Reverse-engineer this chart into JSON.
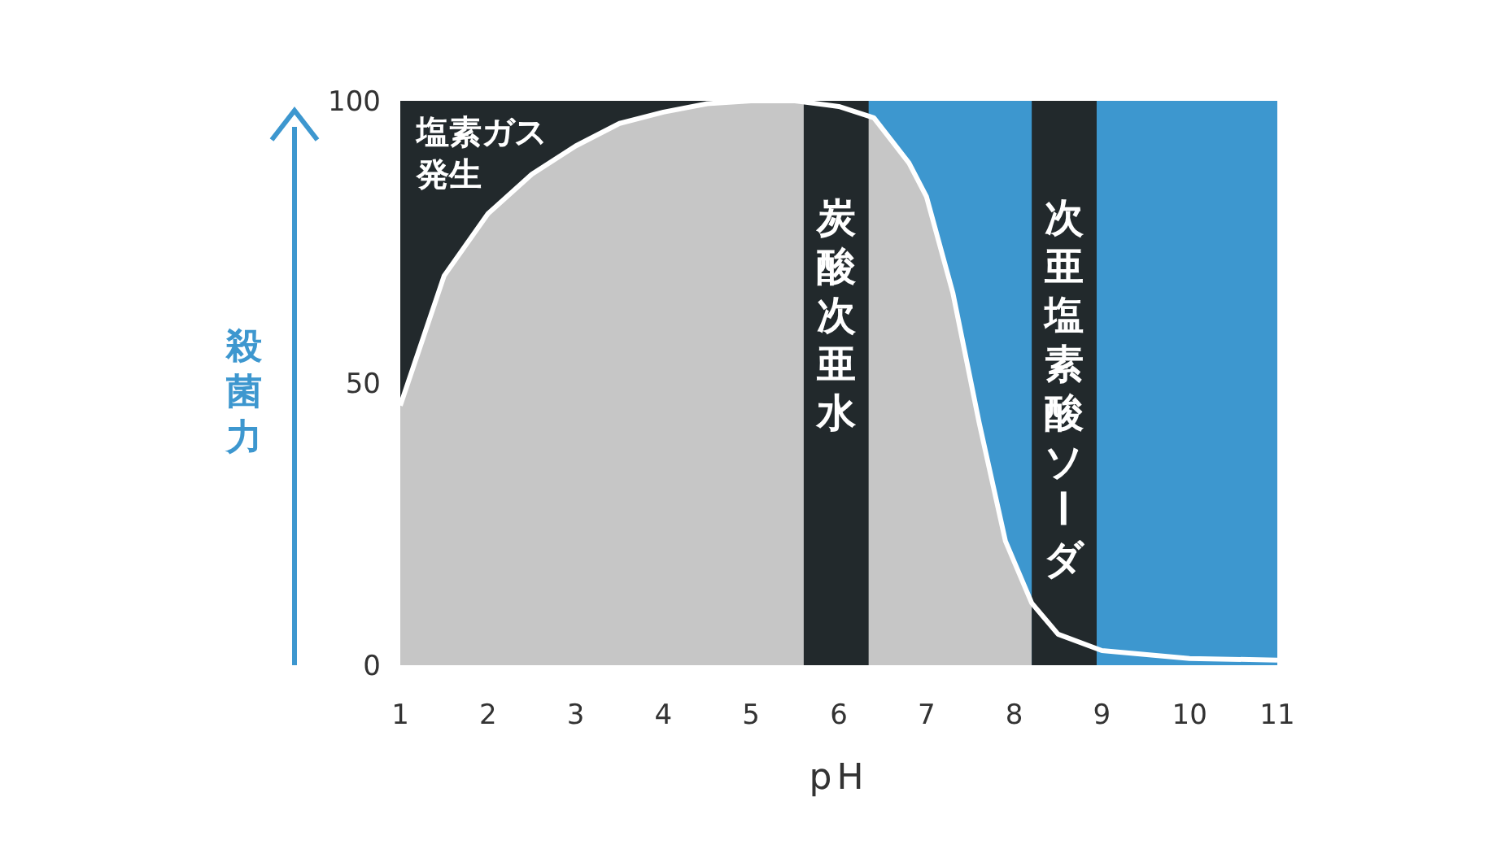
{
  "chart_data": {
    "type": "area",
    "xlabel": "pH",
    "ylabel": "殺菌力",
    "xlim": [
      1,
      11
    ],
    "ylim": [
      0,
      100
    ],
    "xticks": [
      1,
      2,
      3,
      4,
      5,
      6,
      7,
      8,
      9,
      10,
      11
    ],
    "yticks": [
      0,
      50,
      100
    ],
    "grid": false,
    "series": [
      {
        "type": "area",
        "color": "#c6c6c6",
        "x": [
          1,
          1.5,
          2,
          2.5,
          3,
          3.5,
          4,
          4.5,
          5,
          5.5,
          6.4,
          6.8,
          7,
          7.3,
          7.6,
          7.9,
          8.2
        ],
        "values": [
          46,
          69,
          80,
          87,
          92,
          96,
          98,
          99.5,
          100,
          100,
          97,
          89,
          83,
          66,
          43,
          22,
          11
        ]
      },
      {
        "type": "line",
        "color": "#ffffff",
        "x": [
          1,
          1.5,
          2,
          2.5,
          3,
          3.5,
          4,
          4.5,
          5,
          5.5,
          6,
          6.4,
          6.8,
          7,
          7.3,
          7.6,
          7.9,
          8.2,
          8.5,
          9,
          10,
          11
        ],
        "values": [
          46,
          69,
          80,
          87,
          92,
          96,
          98,
          99.5,
          100,
          100,
          99,
          97,
          89,
          83,
          66,
          43,
          22,
          11,
          5.5,
          2.6,
          1.2,
          0.9
        ]
      }
    ],
    "bands": [
      {
        "axis": "x",
        "from": 1,
        "to": 5.6,
        "label": "塩素ガス発生",
        "color": "#22292c"
      },
      {
        "axis": "x",
        "from": 5.6,
        "to": 11,
        "color": "#3d97cf"
      },
      {
        "axis": "x",
        "from": 5.6,
        "to": 6.34,
        "label": "炭酸次亜水",
        "color": "#22292c"
      },
      {
        "axis": "x",
        "from": 8.2,
        "to": 8.94,
        "label": "次亜塩素酸ソーダ",
        "color": "#22292c"
      }
    ]
  }
}
